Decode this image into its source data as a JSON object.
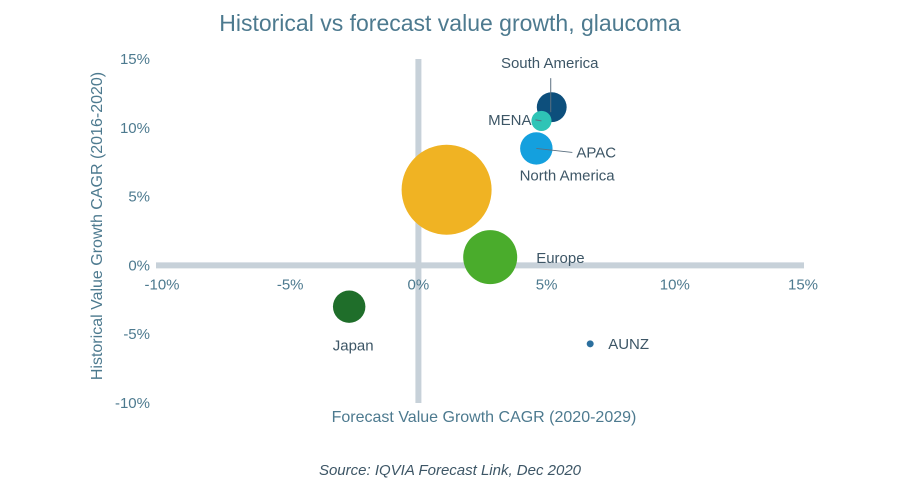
{
  "chart_data": {
    "type": "scatter",
    "title": "Historical vs forecast value growth, glaucoma",
    "xlabel": "Forecast Value Growth CAGR (2020-2029)",
    "ylabel": "Historical Value Growth CAGR (2016-2020)",
    "xlim": [
      -10,
      15
    ],
    "ylim": [
      -10,
      15
    ],
    "x_ticks": [
      "-10%",
      "-5%",
      "0%",
      "5%",
      "10%",
      "15%"
    ],
    "y_ticks": [
      "15%",
      "10%",
      "5%",
      "0%",
      "-5%",
      "-10%"
    ],
    "bubble_size_encoding": "market size (relative)",
    "points": [
      {
        "label": "North America",
        "x": 1.1,
        "y": 5.5,
        "size": 100,
        "color": "#f0b323"
      },
      {
        "label": "Europe",
        "x": 2.8,
        "y": 0.6,
        "size": 36,
        "color": "#4aac2c"
      },
      {
        "label": "Japan",
        "x": -2.7,
        "y": -3.0,
        "size": 13,
        "color": "#1f6e2a"
      },
      {
        "label": "South America",
        "x": 5.2,
        "y": 11.5,
        "size": 11,
        "color": "#0d4f7c"
      },
      {
        "label": "MENA",
        "x": 4.8,
        "y": 10.5,
        "size": 5,
        "color": "#2ec4b6"
      },
      {
        "label": "APAC",
        "x": 4.6,
        "y": 8.5,
        "size": 13,
        "color": "#14a0de"
      },
      {
        "label": "AUNZ",
        "x": 6.7,
        "y": -5.7,
        "size": 0.4,
        "color": "#2b6f9e"
      }
    ],
    "axis_color": "#c7d1d9",
    "grid": false,
    "legend": "none"
  },
  "source": "Source: IQVIA Forecast Link, Dec 2020"
}
